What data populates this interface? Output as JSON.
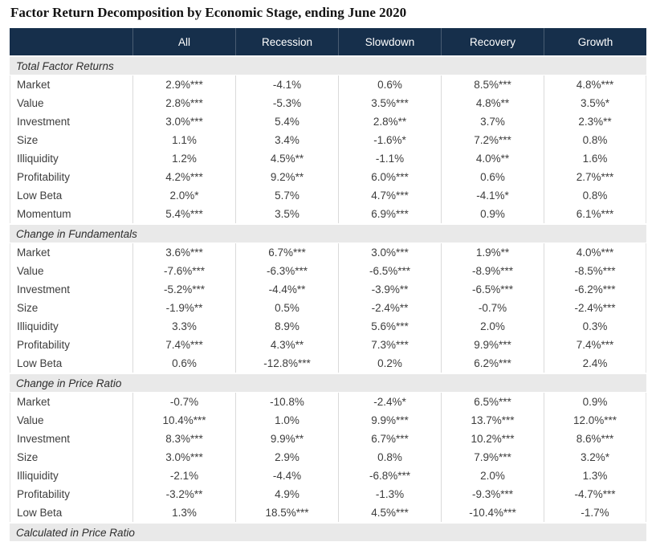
{
  "title": "Factor Return Decomposition by Economic Stage, ending June 2020",
  "colors": {
    "header_bg": "#162F4B",
    "header_text": "#FFFFFF",
    "section_bg": "#E9E9E9",
    "divider": "#DADADA",
    "body_text": "#3D3D3D"
  },
  "chart_data": {
    "type": "table",
    "title": "Factor Return Decomposition by Economic Stage, ending June 2020",
    "columns": [
      "All",
      "Recession",
      "Slowdown",
      "Recovery",
      "Growth"
    ],
    "significance_note": "asterisks denote statistical significance levels as shown in cells",
    "sections": [
      {
        "label": "Total Factor Returns",
        "rows": [
          {
            "label": "Market",
            "values": [
              "2.9%***",
              "-4.1%",
              "0.6%",
              "8.5%***",
              "4.8%***"
            ]
          },
          {
            "label": "Value",
            "values": [
              "2.8%***",
              "-5.3%",
              "3.5%***",
              "4.8%**",
              "3.5%*"
            ]
          },
          {
            "label": "Investment",
            "values": [
              "3.0%***",
              "5.4%",
              "2.8%**",
              "3.7%",
              "2.3%**"
            ]
          },
          {
            "label": "Size",
            "values": [
              "1.1%",
              "3.4%",
              "-1.6%*",
              "7.2%***",
              "0.8%"
            ]
          },
          {
            "label": "Illiquidity",
            "values": [
              "1.2%",
              "4.5%**",
              "-1.1%",
              "4.0%**",
              "1.6%"
            ]
          },
          {
            "label": "Profitability",
            "values": [
              "4.2%***",
              "9.2%**",
              "6.0%***",
              "0.6%",
              "2.7%***"
            ]
          },
          {
            "label": "Low Beta",
            "values": [
              "2.0%*",
              "5.7%",
              "4.7%***",
              "-4.1%*",
              "0.8%"
            ]
          },
          {
            "label": "Momentum",
            "values": [
              "5.4%***",
              "3.5%",
              "6.9%***",
              "0.9%",
              "6.1%***"
            ]
          }
        ]
      },
      {
        "label": "Change in Fundamentals",
        "rows": [
          {
            "label": "Market",
            "values": [
              "3.6%***",
              "6.7%***",
              "3.0%***",
              "1.9%**",
              "4.0%***"
            ]
          },
          {
            "label": "Value",
            "values": [
              "-7.6%***",
              "-6.3%***",
              "-6.5%***",
              "-8.9%***",
              "-8.5%***"
            ]
          },
          {
            "label": "Investment",
            "values": [
              "-5.2%***",
              "-4.4%**",
              "-3.9%**",
              "-6.5%***",
              "-6.2%***"
            ]
          },
          {
            "label": "Size",
            "values": [
              "-1.9%**",
              "0.5%",
              "-2.4%**",
              "-0.7%",
              "-2.4%***"
            ]
          },
          {
            "label": "Illiquidity",
            "values": [
              "3.3%",
              "8.9%",
              "5.6%***",
              "2.0%",
              "0.3%"
            ]
          },
          {
            "label": "Profitability",
            "values": [
              "7.4%***",
              "4.3%**",
              "7.3%***",
              "9.9%***",
              "7.4%***"
            ]
          },
          {
            "label": "Low Beta",
            "values": [
              "0.6%",
              "-12.8%***",
              "0.2%",
              "6.2%***",
              "2.4%"
            ]
          }
        ]
      },
      {
        "label": "Change in Price Ratio",
        "rows": [
          {
            "label": "Market",
            "values": [
              "-0.7%",
              "-10.8%",
              "-2.4%*",
              "6.5%***",
              "0.9%"
            ]
          },
          {
            "label": "Value",
            "values": [
              "10.4%***",
              "1.0%",
              "9.9%***",
              "13.7%***",
              "12.0%***"
            ]
          },
          {
            "label": "Investment",
            "values": [
              "8.3%***",
              "9.9%**",
              "6.7%***",
              "10.2%***",
              "8.6%***"
            ]
          },
          {
            "label": "Size",
            "values": [
              "3.0%***",
              "2.9%",
              "0.8%",
              "7.9%***",
              "3.2%*"
            ]
          },
          {
            "label": "Illiquidity",
            "values": [
              "-2.1%",
              "-4.4%",
              "-6.8%***",
              "2.0%",
              "1.3%"
            ]
          },
          {
            "label": "Profitability",
            "values": [
              "-3.2%**",
              "4.9%",
              "-1.3%",
              "-9.3%***",
              "-4.7%***"
            ]
          },
          {
            "label": "Low Beta",
            "values": [
              "1.3%",
              "18.5%***",
              "4.5%***",
              "-10.4%***",
              "-1.7%"
            ]
          }
        ]
      }
    ],
    "clipped_row_label": "Calculated in Price Ratio"
  }
}
